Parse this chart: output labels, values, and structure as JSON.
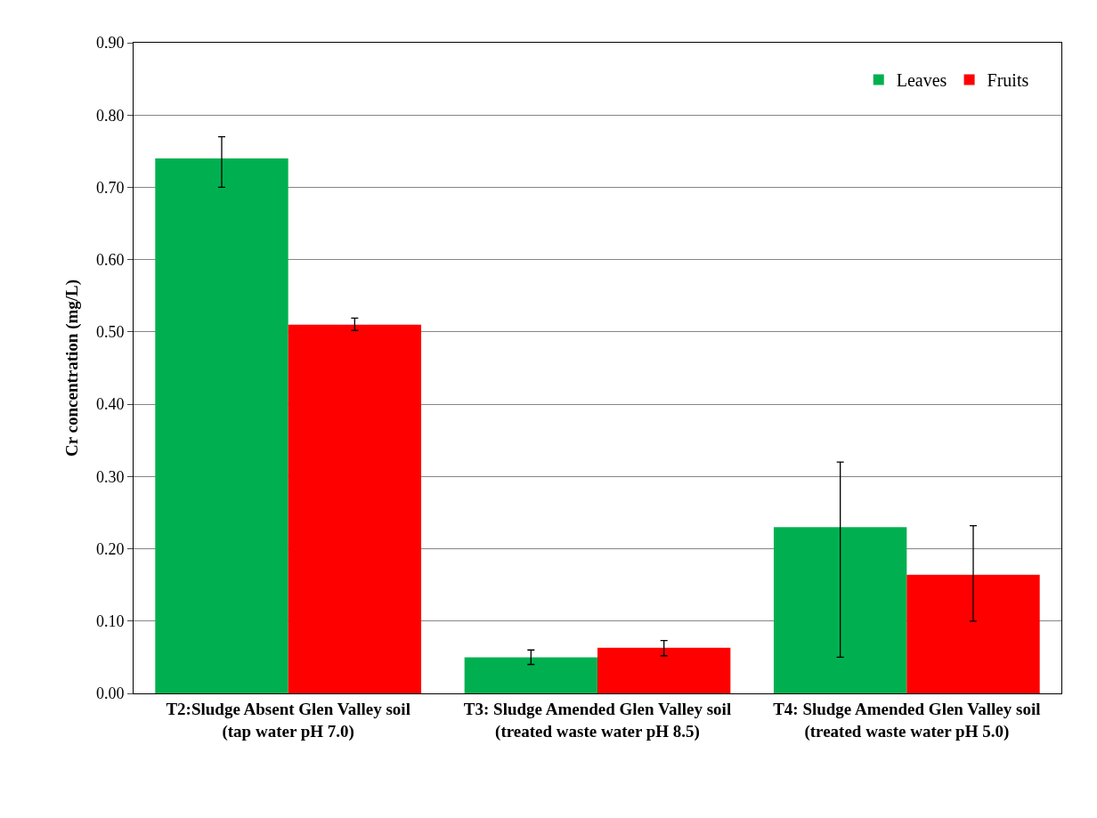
{
  "chart_data": {
    "type": "bar",
    "ylabel": "Cr concentration (mg/L)",
    "categories": [
      "T2:Sludge Absent Glen Valley soil\n(tap water pH 7.0)",
      "T3: Sludge Amended Glen Valley soil\n(treated waste water pH 8.5)",
      "T4: Sludge Amended Glen Valley soil\n(treated waste water pH 5.0)"
    ],
    "series": [
      {
        "name": "Leaves",
        "color": "#00b050",
        "values": [
          0.74,
          0.05,
          0.23
        ],
        "errors": [
          [
            0.7,
            0.77
          ],
          [
            0.04,
            0.06
          ],
          [
            0.05,
            0.32
          ]
        ]
      },
      {
        "name": "Fruits",
        "color": "#ff0000",
        "values": [
          0.51,
          0.063,
          0.164
        ],
        "errors": [
          [
            0.502,
            0.519
          ],
          [
            0.052,
            0.073
          ],
          [
            0.1,
            0.232
          ]
        ]
      }
    ],
    "ylim": [
      0,
      0.9
    ],
    "yticks": [
      {
        "value": 0,
        "label": "0.00"
      },
      {
        "value": 0.1,
        "label": "0.10"
      },
      {
        "value": 0.2,
        "label": "0.20"
      },
      {
        "value": 0.3,
        "label": "0.30"
      },
      {
        "value": 0.4,
        "label": "0.40"
      },
      {
        "value": 0.5,
        "label": "0.50"
      },
      {
        "value": 0.6,
        "label": "0.60"
      },
      {
        "value": 0.7,
        "label": "0.70"
      },
      {
        "value": 0.8,
        "label": "0.80"
      },
      {
        "value": 0.9,
        "label": "0.90"
      }
    ],
    "grid": "y",
    "legend": "top right"
  }
}
